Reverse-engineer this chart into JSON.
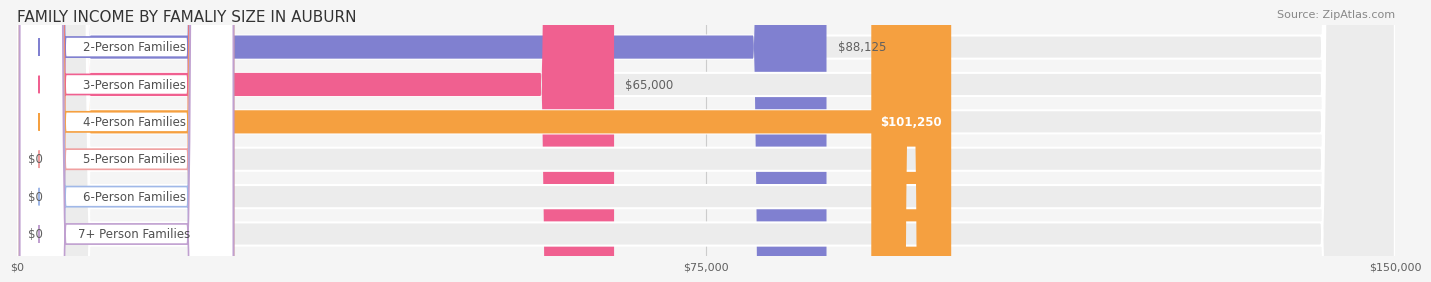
{
  "title": "FAMILY INCOME BY FAMALIY SIZE IN AUBURN",
  "source": "Source: ZipAtlas.com",
  "categories": [
    "2-Person Families",
    "3-Person Families",
    "4-Person Families",
    "5-Person Families",
    "6-Person Families",
    "7+ Person Families"
  ],
  "values": [
    88125,
    65000,
    101250,
    0,
    0,
    0
  ],
  "bar_colors": [
    "#8080d0",
    "#f06090",
    "#f5a040",
    "#f0a0a0",
    "#a0b8e8",
    "#c0a0d0"
  ],
  "label_colors": [
    "#606060",
    "#606060",
    "#ffffff",
    "#606060",
    "#606060",
    "#606060"
  ],
  "value_labels": [
    "$88,125",
    "$65,000",
    "$101,250",
    "$0",
    "$0",
    "$0"
  ],
  "xlim": [
    0,
    150000
  ],
  "xtick_values": [
    0,
    75000,
    150000
  ],
  "xtick_labels": [
    "$0",
    "$75,000",
    "$150,000"
  ],
  "background_color": "#f5f5f5",
  "bar_bg_color": "#ececec",
  "title_fontsize": 11,
  "source_fontsize": 8,
  "label_fontsize": 8.5,
  "value_fontsize": 8.5
}
